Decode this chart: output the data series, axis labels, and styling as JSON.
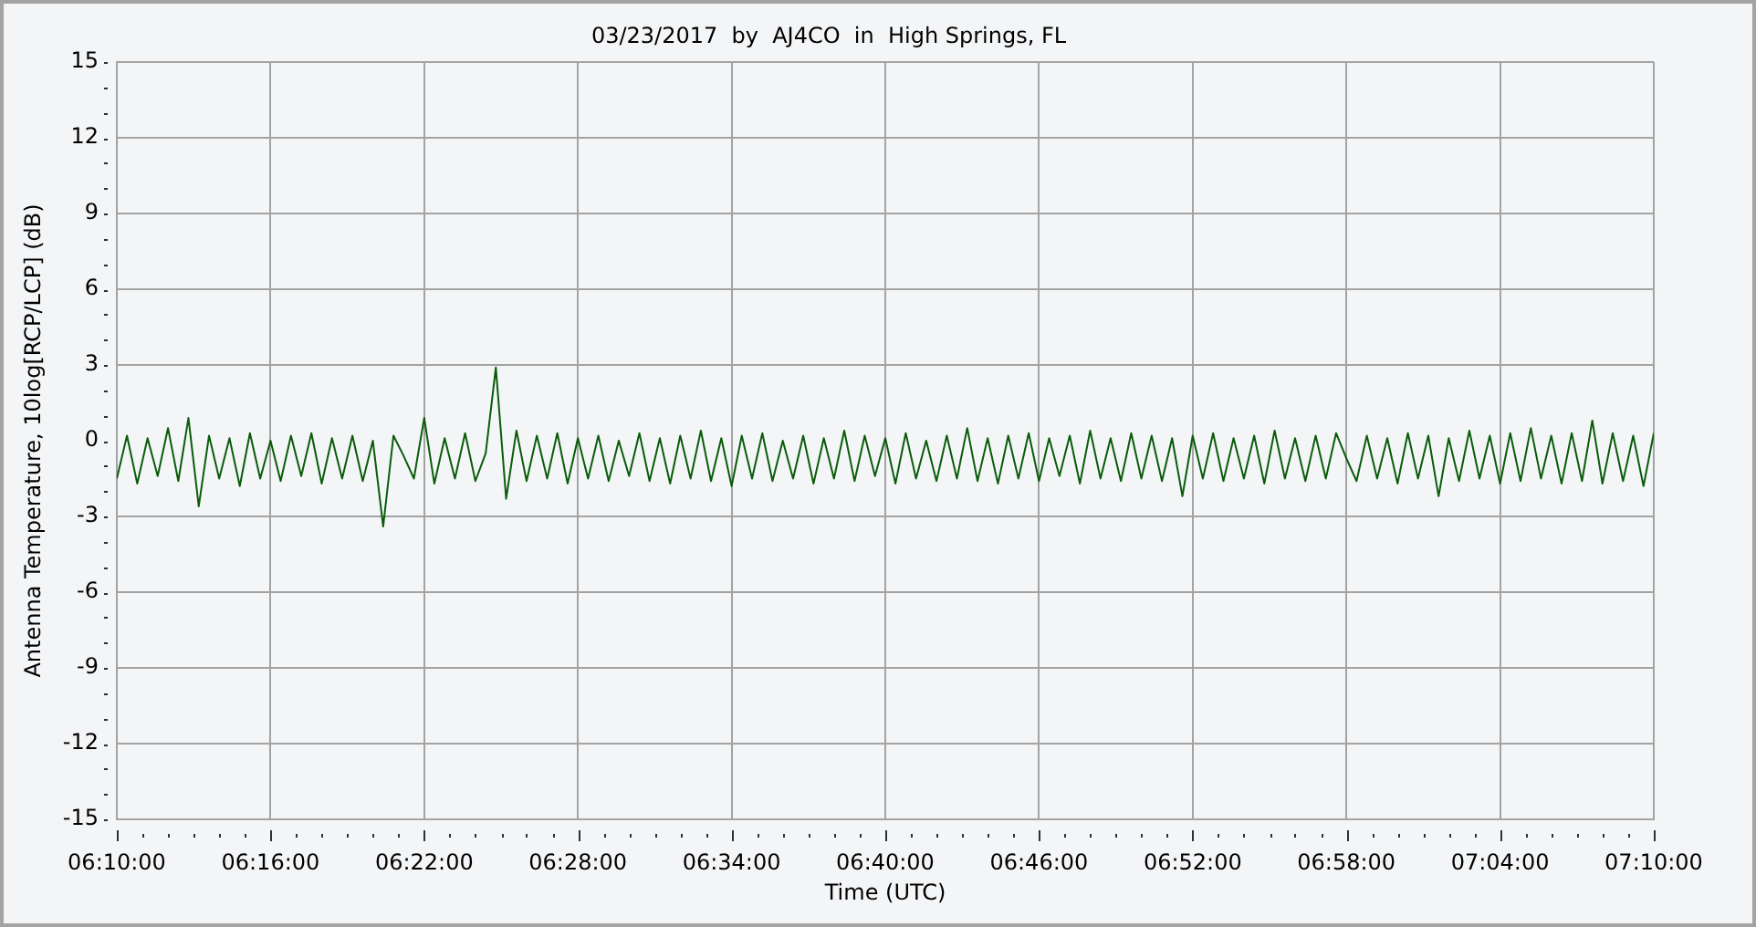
{
  "chart_data": {
    "type": "line",
    "title": "03/23/2017  by  AJ4CO  in  High Springs, FL",
    "xlabel": "Time (UTC)",
    "ylabel": "Antenna Temperature, 10log[RCP/LCP] (dB)",
    "x": [
      6.1667,
      6.1733,
      6.18,
      6.1867,
      6.1933,
      6.2,
      6.2067,
      6.2133,
      6.22,
      6.2267,
      6.2333,
      6.24,
      6.2467,
      6.2533,
      6.26,
      6.2667,
      6.2733,
      6.28,
      6.2867,
      6.2933,
      6.3,
      6.3067,
      6.3133,
      6.32,
      6.3267,
      6.3333,
      6.34,
      6.3467,
      6.3533,
      6.36,
      6.3667,
      6.3733,
      6.38,
      6.3867,
      6.3933,
      6.4,
      6.4067,
      6.4133,
      6.42,
      6.4267,
      6.4333,
      6.44,
      6.4467,
      6.4533,
      6.46,
      6.4667,
      6.4733,
      6.48,
      6.4867,
      6.4933,
      6.5,
      6.5067,
      6.5133,
      6.52,
      6.5267,
      6.5333,
      6.54,
      6.5467,
      6.5533,
      6.56,
      6.5667,
      6.5733,
      6.58,
      6.5867,
      6.5933,
      6.6,
      6.6067,
      6.6133,
      6.62,
      6.6267,
      6.6333,
      6.64,
      6.6467,
      6.6533,
      6.66,
      6.6667,
      6.6733,
      6.68,
      6.6867,
      6.6933,
      6.7,
      6.7067,
      6.7133,
      6.72,
      6.7267,
      6.7333,
      6.74,
      6.7467,
      6.7533,
      6.76,
      6.7667,
      6.7733,
      6.78,
      6.7867,
      6.7933,
      6.8,
      6.8067,
      6.8133,
      6.82,
      6.8267,
      6.8333,
      6.84,
      6.8467,
      6.8533,
      6.86,
      6.8667,
      6.8733,
      6.88,
      6.8867,
      6.8933,
      6.9,
      6.9067,
      6.9133,
      6.92,
      6.9267,
      6.9333,
      6.94,
      6.9467,
      6.9533,
      6.96,
      6.9667,
      6.9733,
      6.98,
      6.9867,
      6.9933,
      7.0,
      7.0067,
      7.0133,
      7.02,
      7.0267,
      7.0333,
      7.04,
      7.0467,
      7.0533,
      7.06,
      7.0667,
      7.0733,
      7.08,
      7.0867,
      7.0933,
      7.1,
      7.1067,
      7.1133,
      7.12,
      7.1267,
      7.1333,
      7.14,
      7.1467,
      7.1533,
      7.16,
      7.1667
    ],
    "series": [
      {
        "color": "#0a5c0a",
        "values": [
          -1.5,
          0.2,
          -1.7,
          0.1,
          -1.4,
          0.5,
          -1.6,
          0.9,
          -2.6,
          0.2,
          -1.5,
          0.1,
          -1.8,
          0.3,
          -1.5,
          0.0,
          -1.6,
          0.2,
          -1.4,
          0.3,
          -1.7,
          0.1,
          -1.5,
          0.2,
          -1.6,
          0.0,
          -3.4,
          0.2,
          -0.6,
          -1.5,
          0.9,
          -1.7,
          0.1,
          -1.5,
          0.3,
          -1.6,
          -0.5,
          2.9,
          -2.3,
          0.4,
          -1.6,
          0.2,
          -1.5,
          0.3,
          -1.7,
          0.1,
          -1.5,
          0.2,
          -1.6,
          0.0,
          -1.4,
          0.3,
          -1.6,
          0.1,
          -1.7,
          0.2,
          -1.5,
          0.4,
          -1.6,
          0.1,
          -1.8,
          0.2,
          -1.5,
          0.3,
          -1.6,
          0.0,
          -1.5,
          0.2,
          -1.7,
          0.1,
          -1.5,
          0.4,
          -1.6,
          0.2,
          -1.4,
          0.1,
          -1.7,
          0.3,
          -1.5,
          0.0,
          -1.6,
          0.2,
          -1.5,
          0.5,
          -1.6,
          0.1,
          -1.7,
          0.2,
          -1.5,
          0.3,
          -1.6,
          0.1,
          -1.4,
          0.2,
          -1.7,
          0.4,
          -1.5,
          0.1,
          -1.6,
          0.3,
          -1.5,
          0.2,
          -1.6,
          0.1,
          -2.2,
          0.2,
          -1.5,
          0.3,
          -1.6,
          0.1,
          -1.5,
          0.2,
          -1.7,
          0.4,
          -1.5,
          0.1,
          -1.6,
          0.2,
          -1.5,
          0.3,
          -0.7,
          -1.6,
          0.2,
          -1.5,
          0.1,
          -1.7,
          0.3,
          -1.5,
          0.2,
          -2.2,
          0.1,
          -1.6,
          0.4,
          -1.5,
          0.2,
          -1.7,
          0.3,
          -1.6,
          0.5,
          -1.5,
          0.2,
          -1.7,
          0.3,
          -1.6,
          0.8,
          -1.7,
          0.3,
          -1.6,
          0.2,
          -1.8,
          0.3
        ]
      }
    ],
    "xlim": [
      6.1667,
      7.1667
    ],
    "xticks": [
      {
        "value": 6.1667,
        "label": "06:10:00"
      },
      {
        "value": 6.1833,
        "label": null
      },
      {
        "value": 6.2,
        "label": null
      },
      {
        "value": 6.2167,
        "label": null
      },
      {
        "value": 6.2333,
        "label": null
      },
      {
        "value": 6.25,
        "label": null
      },
      {
        "value": 6.2667,
        "label": "06:16:00"
      },
      {
        "value": 6.2833,
        "label": null
      },
      {
        "value": 6.3,
        "label": null
      },
      {
        "value": 6.3167,
        "label": null
      },
      {
        "value": 6.3333,
        "label": null
      },
      {
        "value": 6.35,
        "label": null
      },
      {
        "value": 6.3667,
        "label": "06:22:00"
      },
      {
        "value": 6.3833,
        "label": null
      },
      {
        "value": 6.4,
        "label": null
      },
      {
        "value": 6.4167,
        "label": null
      },
      {
        "value": 6.4333,
        "label": null
      },
      {
        "value": 6.45,
        "label": null
      },
      {
        "value": 6.4667,
        "label": "06:28:00"
      },
      {
        "value": 6.4833,
        "label": null
      },
      {
        "value": 6.5,
        "label": null
      },
      {
        "value": 6.5167,
        "label": null
      },
      {
        "value": 6.5333,
        "label": null
      },
      {
        "value": 6.55,
        "label": null
      },
      {
        "value": 6.5667,
        "label": "06:34:00"
      },
      {
        "value": 6.5833,
        "label": null
      },
      {
        "value": 6.6,
        "label": null
      },
      {
        "value": 6.6167,
        "label": null
      },
      {
        "value": 6.6333,
        "label": null
      },
      {
        "value": 6.65,
        "label": null
      },
      {
        "value": 6.6667,
        "label": "06:40:00"
      },
      {
        "value": 6.6833,
        "label": null
      },
      {
        "value": 6.7,
        "label": null
      },
      {
        "value": 6.7167,
        "label": null
      },
      {
        "value": 6.7333,
        "label": null
      },
      {
        "value": 6.75,
        "label": null
      },
      {
        "value": 6.7667,
        "label": "06:46:00"
      },
      {
        "value": 6.7833,
        "label": null
      },
      {
        "value": 6.8,
        "label": null
      },
      {
        "value": 6.8167,
        "label": null
      },
      {
        "value": 6.8333,
        "label": null
      },
      {
        "value": 6.85,
        "label": null
      },
      {
        "value": 6.8667,
        "label": "06:52:00"
      },
      {
        "value": 6.8833,
        "label": null
      },
      {
        "value": 6.9,
        "label": null
      },
      {
        "value": 6.9167,
        "label": null
      },
      {
        "value": 6.9333,
        "label": null
      },
      {
        "value": 6.95,
        "label": null
      },
      {
        "value": 6.9667,
        "label": "06:58:00"
      },
      {
        "value": 6.9833,
        "label": null
      },
      {
        "value": 7.0,
        "label": null
      },
      {
        "value": 7.0167,
        "label": null
      },
      {
        "value": 7.0333,
        "label": null
      },
      {
        "value": 7.05,
        "label": null
      },
      {
        "value": 7.0667,
        "label": "07:04:00"
      },
      {
        "value": 7.0833,
        "label": null
      },
      {
        "value": 7.1,
        "label": null
      },
      {
        "value": 7.1167,
        "label": null
      },
      {
        "value": 7.1333,
        "label": null
      },
      {
        "value": 7.15,
        "label": null
      },
      {
        "value": 7.1667,
        "label": "07:10:00"
      }
    ],
    "ylim": [
      -15,
      15
    ],
    "yticks": [
      -15,
      {
        "value": -14,
        "label": null
      },
      {
        "value": -13,
        "label": null
      },
      -12,
      {
        "value": -11,
        "label": null
      },
      {
        "value": -10,
        "label": null
      },
      -9,
      {
        "value": -8,
        "label": null
      },
      {
        "value": -7,
        "label": null
      },
      -6,
      {
        "value": -5,
        "label": null
      },
      {
        "value": -4,
        "label": null
      },
      -3,
      {
        "value": -2,
        "label": null
      },
      {
        "value": -1,
        "label": null
      },
      0,
      {
        "value": 1,
        "label": null
      },
      {
        "value": 2,
        "label": null
      },
      3,
      {
        "value": 4,
        "label": null
      },
      {
        "value": 5,
        "label": null
      },
      6,
      {
        "value": 7,
        "label": null
      },
      {
        "value": 8,
        "label": null
      },
      9,
      {
        "value": 10,
        "label": null
      },
      {
        "value": 11,
        "label": null
      },
      12,
      {
        "value": 13,
        "label": null
      },
      {
        "value": 14,
        "label": null
      },
      15
    ],
    "grid": true,
    "legend": false,
    "marker": "none",
    "line_style": "solid"
  }
}
